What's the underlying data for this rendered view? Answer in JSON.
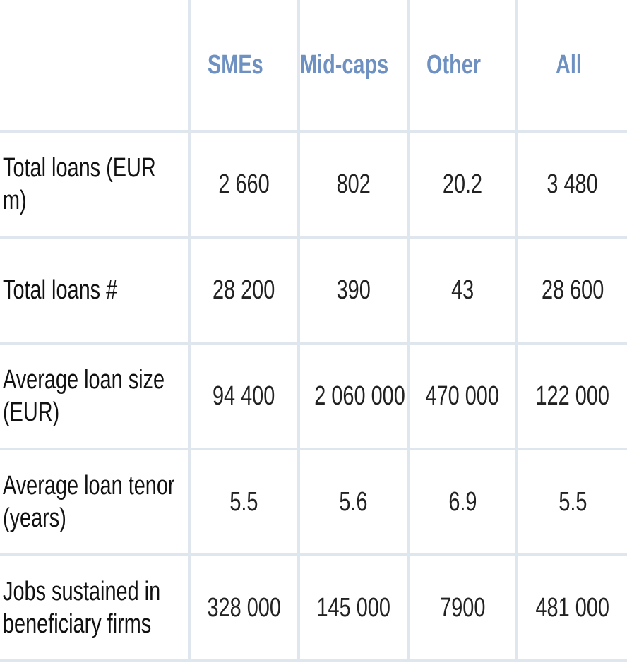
{
  "table": {
    "header": [
      "SMEs",
      "Mid-caps",
      "Other",
      "All"
    ],
    "rows": [
      {
        "label": "Total loans (EUR m)",
        "cells": [
          "2 660",
          "802",
          "20.2",
          "3 480"
        ]
      },
      {
        "label": "Total loans #",
        "cells": [
          "28 200",
          "390",
          "43",
          "28 600"
        ]
      },
      {
        "label": "Average loan size (EUR)",
        "cells": [
          "94 400",
          "2 060 000",
          "470 000",
          "122 000"
        ]
      },
      {
        "label": "Average loan tenor (years)",
        "cells": [
          "5.5",
          "5.6",
          "6.9",
          "5.5"
        ]
      },
      {
        "label": "Jobs sustained in beneficiary firms",
        "cells": [
          "328 000",
          "145 000",
          "7900",
          "481 000"
        ]
      }
    ]
  }
}
